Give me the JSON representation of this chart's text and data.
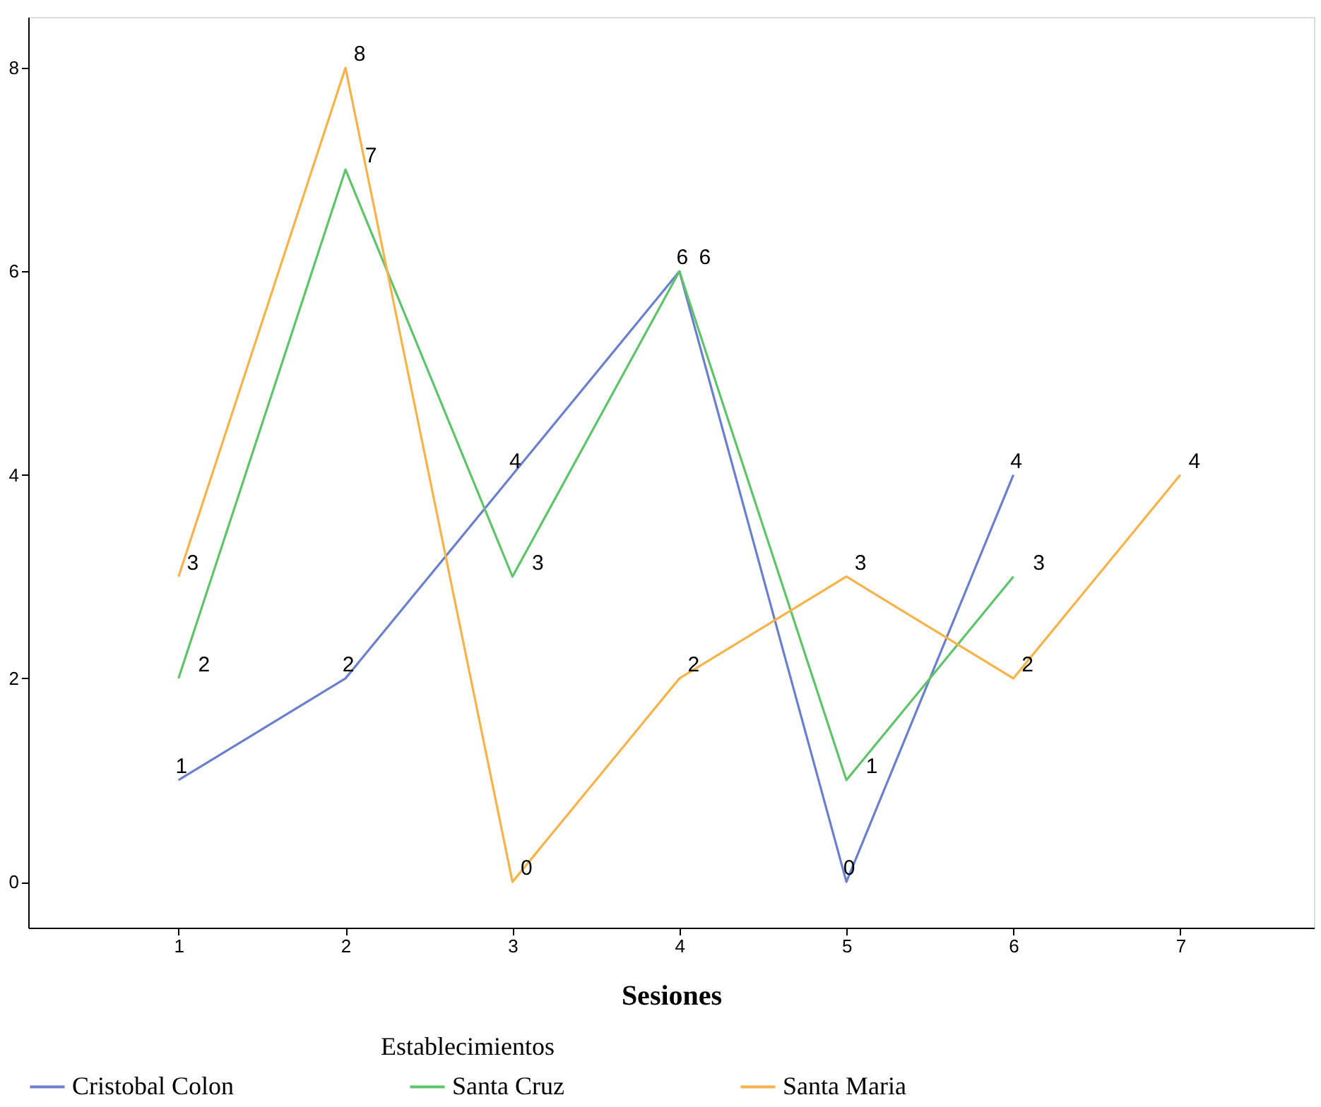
{
  "chart_data": {
    "type": "line",
    "xlabel": "Sesiones",
    "legend_title": "Establecimientos",
    "series": [
      {
        "name": "Cristobal Colon",
        "color": "#6b7fcf",
        "x": [
          1,
          2,
          3,
          4,
          5,
          6
        ],
        "values": [
          1,
          2,
          4,
          6,
          0,
          4
        ]
      },
      {
        "name": "Santa Cruz",
        "color": "#5ec46a",
        "x": [
          1,
          2,
          3,
          4,
          5,
          6
        ],
        "values": [
          2,
          7,
          3,
          6,
          1,
          3
        ]
      },
      {
        "name": "Santa Maria",
        "color": "#f7b34a",
        "x": [
          1,
          2,
          3,
          4,
          5,
          6,
          7
        ],
        "values": [
          3,
          8,
          0,
          2,
          3,
          2,
          4
        ]
      }
    ],
    "xlim": [
      0.1,
      7.8
    ],
    "xticks": [
      1,
      2,
      3,
      4,
      5,
      6,
      7
    ],
    "ylim": [
      -0.45,
      8.5
    ],
    "yticks": [
      0,
      2,
      4,
      6,
      8
    ],
    "data_labels": true,
    "grid": false,
    "legend": "bottom",
    "marker": "none",
    "line_style": "solid"
  }
}
